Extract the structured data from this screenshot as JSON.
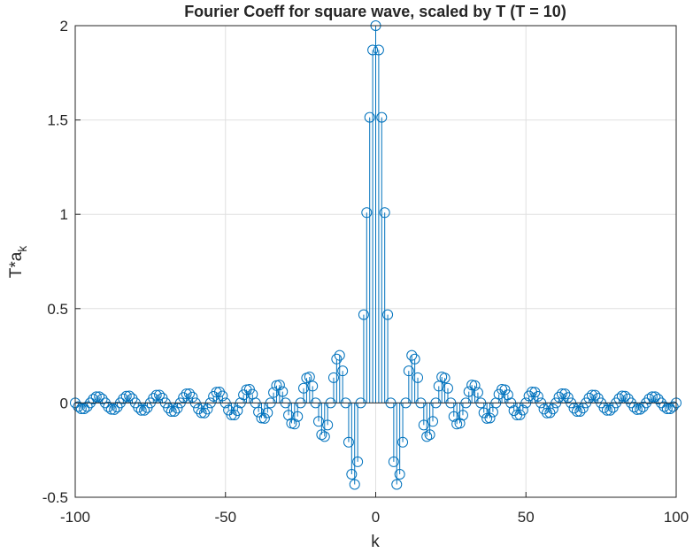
{
  "chart_data": {
    "type": "stem",
    "title": "Fourier Coeff for square wave, scaled by T (T = 10)",
    "xlabel": "k",
    "ylabel": {
      "text": "T*a",
      "subscript": "k"
    },
    "color": "#0072bd",
    "grid": true,
    "xlim": [
      -100,
      100
    ],
    "ylim": [
      -0.5,
      2
    ],
    "xticks": [
      -100,
      -50,
      0,
      50,
      100
    ],
    "yticks": [
      -0.5,
      0,
      0.5,
      1,
      1.5,
      2
    ],
    "x": [
      -100,
      -99,
      -98,
      -97,
      -96,
      -95,
      -94,
      -93,
      -92,
      -91,
      -90,
      -89,
      -88,
      -87,
      -86,
      -85,
      -84,
      -83,
      -82,
      -81,
      -80,
      -79,
      -78,
      -77,
      -76,
      -75,
      -74,
      -73,
      -72,
      -71,
      -70,
      -69,
      -68,
      -67,
      -66,
      -65,
      -64,
      -63,
      -62,
      -61,
      -60,
      -59,
      -58,
      -57,
      -56,
      -55,
      -54,
      -53,
      -52,
      -51,
      -50,
      -49,
      -48,
      -47,
      -46,
      -45,
      -44,
      -43,
      -42,
      -41,
      -40,
      -39,
      -38,
      -37,
      -36,
      -35,
      -34,
      -33,
      -32,
      -31,
      -30,
      -29,
      -28,
      -27,
      -26,
      -25,
      -24,
      -23,
      -22,
      -21,
      -20,
      -19,
      -18,
      -17,
      -16,
      -15,
      -14,
      -13,
      -12,
      -11,
      -10,
      -9,
      -8,
      -7,
      -6,
      -5,
      -4,
      -3,
      -2,
      -1,
      0,
      1,
      2,
      3,
      4,
      5,
      6,
      7,
      8,
      9,
      10,
      11,
      12,
      13,
      14,
      15,
      16,
      17,
      18,
      19,
      20,
      21,
      22,
      23,
      24,
      25,
      26,
      27,
      28,
      29,
      30,
      31,
      32,
      33,
      34,
      35,
      36,
      37,
      38,
      39,
      40,
      41,
      42,
      43,
      44,
      45,
      46,
      47,
      48,
      49,
      50,
      51,
      52,
      53,
      54,
      55,
      56,
      57,
      58,
      59,
      60,
      61,
      62,
      63,
      64,
      65,
      66,
      67,
      68,
      69,
      70,
      71,
      72,
      73,
      74,
      75,
      76,
      77,
      78,
      79,
      80,
      81,
      82,
      83,
      84,
      85,
      86,
      87,
      88,
      89,
      90,
      91,
      92,
      93,
      94,
      95,
      96,
      97,
      98,
      99,
      100
    ],
    "values": [
      0,
      -0.019,
      -0.031,
      -0.031,
      -0.019,
      0,
      0.02,
      0.033,
      0.033,
      0.021,
      0,
      -0.021,
      -0.034,
      -0.035,
      -0.022,
      0,
      0.022,
      0.036,
      0.037,
      0.023,
      0,
      -0.024,
      -0.039,
      -0.039,
      -0.025,
      0,
      0.025,
      0.041,
      0.042,
      0.026,
      0,
      -0.027,
      -0.045,
      -0.045,
      -0.028,
      0,
      0.029,
      0.048,
      0.049,
      0.031,
      0,
      -0.032,
      -0.052,
      -0.053,
      -0.033,
      0,
      0.035,
      0.057,
      0.058,
      0.037,
      0,
      -0.038,
      -0.063,
      -0.064,
      -0.041,
      0,
      0.043,
      0.07,
      0.072,
      0.046,
      0,
      -0.048,
      -0.08,
      -0.082,
      -0.052,
      0,
      0.055,
      0.092,
      0.095,
      0.06,
      0,
      -0.065,
      -0.108,
      -0.112,
      -0.072,
      0,
      0.078,
      0.132,
      0.138,
      0.089,
      0,
      -0.098,
      -0.168,
      -0.178,
      -0.117,
      0,
      0.134,
      0.233,
      0.252,
      0.17,
      0,
      -0.208,
      -0.378,
      -0.432,
      -0.312,
      0,
      0.468,
      1.009,
      1.514,
      1.871,
      2,
      1.871,
      1.514,
      1.009,
      0.468,
      0,
      -0.312,
      -0.432,
      -0.378,
      -0.208,
      0,
      0.17,
      0.252,
      0.233,
      0.134,
      0,
      -0.117,
      -0.178,
      -0.168,
      -0.098,
      0,
      0.089,
      0.138,
      0.132,
      0.078,
      0,
      -0.072,
      -0.112,
      -0.108,
      -0.065,
      0,
      0.06,
      0.095,
      0.092,
      0.055,
      0,
      -0.052,
      -0.082,
      -0.08,
      -0.048,
      0,
      0.046,
      0.072,
      0.07,
      0.043,
      0,
      -0.041,
      -0.064,
      -0.063,
      -0.038,
      0,
      0.037,
      0.058,
      0.057,
      0.035,
      0,
      -0.033,
      -0.053,
      -0.052,
      -0.032,
      0,
      0.031,
      0.049,
      0.048,
      0.029,
      0,
      -0.028,
      -0.045,
      -0.045,
      -0.027,
      0,
      0.026,
      0.042,
      0.041,
      0.025,
      0,
      -0.025,
      -0.039,
      -0.039,
      -0.024,
      0,
      0.023,
      0.037,
      0.036,
      0.022,
      0,
      -0.022,
      -0.035,
      -0.034,
      -0.021,
      0,
      0.021,
      0.033,
      0.033,
      0.02,
      0,
      -0.019,
      -0.031,
      -0.031,
      -0.019,
      0
    ]
  }
}
